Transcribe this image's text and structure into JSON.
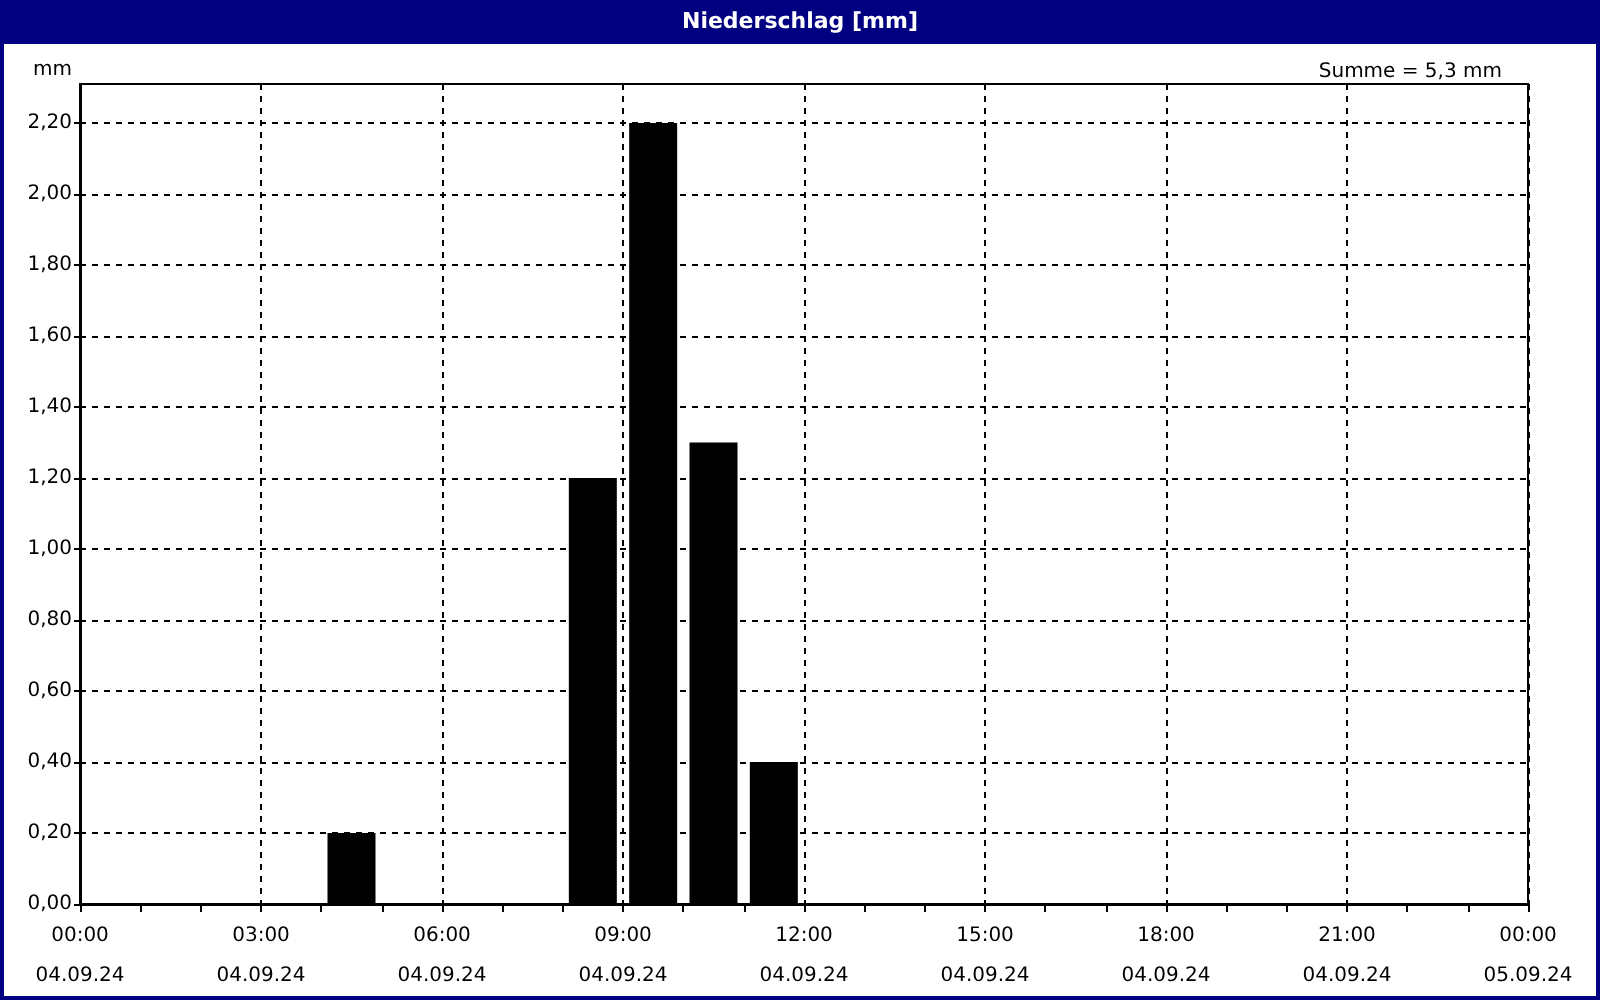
{
  "chart_data": {
    "type": "bar",
    "title": "Niederschlag [mm]",
    "ylabel": "mm",
    "annotations": [
      "Summe = 5,3 mm"
    ],
    "x": [
      "--09-04T04:30",
      "--09-04T08:30",
      "--09-04T09:30",
      "--09-04T10:30",
      "--09-04T11:30"
    ],
    "series": [
      {
        "color": "#000000",
        "values": [
          0.2,
          1.2,
          2.2,
          1.3,
          0.4
        ]
      }
    ],
    "xlim": [
      "--09-04T00:00",
      "--09-05T00:00"
    ],
    "xticks": [
      {
        "value": "--09-04T00:00",
        "label": "00:00\n04.09.24"
      },
      {
        "value": "--09-04T01:00",
        "label": null
      },
      {
        "value": "--09-04T02:00",
        "label": null
      },
      {
        "value": "--09-04T03:00",
        "label": "03:00\n04.09.24"
      },
      {
        "value": "--09-04T04:00",
        "label": null
      },
      {
        "value": "--09-04T05:00",
        "label": null
      },
      {
        "value": "--09-04T06:00",
        "label": "06:00\n04.09.24"
      },
      {
        "value": "--09-04T07:00",
        "label": null
      },
      {
        "value": "--09-04T08:00",
        "label": null
      },
      {
        "value": "--09-04T09:00",
        "label": "09:00\n04.09.24"
      },
      {
        "value": "--09-04T10:00",
        "label": null
      },
      {
        "value": "--09-04T11:00",
        "label": null
      },
      {
        "value": "--09-04T12:00",
        "label": "12:00\n04.09.24"
      },
      {
        "value": "--09-04T13:00",
        "label": null
      },
      {
        "value": "--09-04T14:00",
        "label": null
      },
      {
        "value": "--09-04T15:00",
        "label": "15:00\n04.09.24"
      },
      {
        "value": "--09-04T16:00",
        "label": null
      },
      {
        "value": "--09-04T17:00",
        "label": null
      },
      {
        "value": "--09-04T18:00",
        "label": "18:00\n04.09.24"
      },
      {
        "value": "--09-04T19:00",
        "label": null
      },
      {
        "value": "--09-04T20:00",
        "label": null
      },
      {
        "value": "--09-04T21:00",
        "label": "21:00\n04.09.24"
      },
      {
        "value": "--09-04T22:00",
        "label": null
      },
      {
        "value": "--09-04T23:00",
        "label": null
      },
      {
        "value": "--09-05T00:00",
        "label": "00:00\n05.09.24"
      }
    ],
    "ylim": [
      0,
      2.31
    ],
    "yticks": [
      {
        "value": 0,
        "label": "0,00"
      },
      {
        "value": 0.2,
        "label": "0,20"
      },
      {
        "value": 0.4,
        "label": "0,40"
      },
      {
        "value": 0.6,
        "label": "0,60"
      },
      {
        "value": 0.8,
        "label": "0,80"
      },
      {
        "value": 1,
        "label": "1,00"
      },
      {
        "value": 1.2,
        "label": "1,20"
      },
      {
        "value": 1.4,
        "label": "1,40"
      },
      {
        "value": 1.6,
        "label": "1,60"
      },
      {
        "value": 1.8,
        "label": "1,80"
      },
      {
        "value": 2,
        "label": "2,00"
      },
      {
        "value": 2.2,
        "label": "2,20"
      }
    ],
    "grid": true
  }
}
